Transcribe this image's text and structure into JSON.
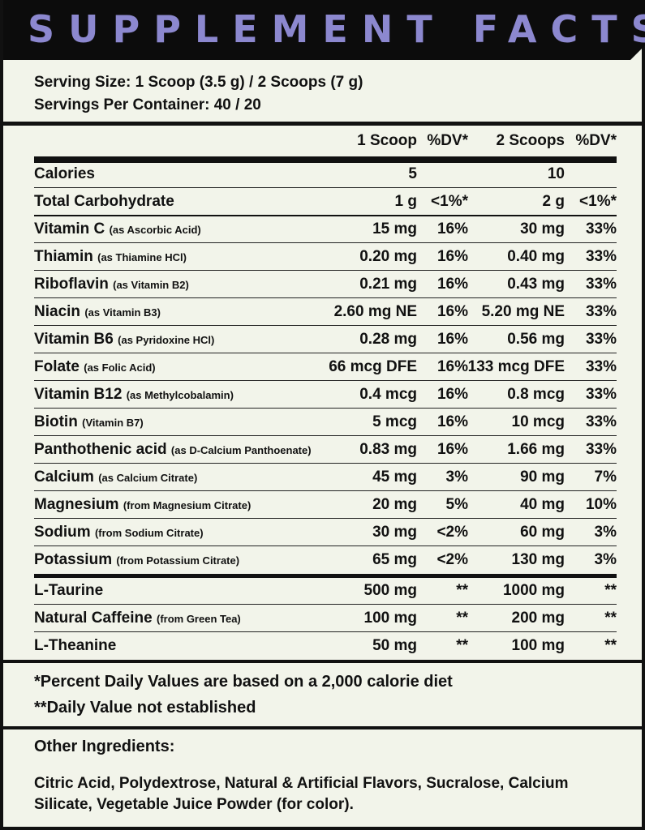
{
  "header": {
    "title": "SUPPLEMENT FACTS",
    "title_color": "#8c88cf",
    "background": "#0c0c0c"
  },
  "serving": {
    "size": "Serving Size: 1 Scoop (3.5 g) / 2 Scoops (7 g)",
    "per_container": "Servings Per Container: 40 / 20"
  },
  "columns": {
    "scoop1": "1 Scoop",
    "dv1": "%DV*",
    "scoop2": "2 Scoops",
    "dv2": "%DV*"
  },
  "nutrients": [
    {
      "name": "Calories",
      "note": "",
      "amt1": "5",
      "dv1": "",
      "amt2": "10",
      "dv2": ""
    },
    {
      "name": "Total Carbohydrate",
      "note": "",
      "amt1": "1 g",
      "dv1": "<1%*",
      "amt2": "2 g",
      "dv2": "<1%*"
    },
    {
      "name": "Vitamin C",
      "note": "(as Ascorbic Acid)",
      "amt1": "15 mg",
      "dv1": "16%",
      "amt2": "30 mg",
      "dv2": "33%"
    },
    {
      "name": "Thiamin",
      "note": "(as Thiamine HCl)",
      "amt1": "0.20 mg",
      "dv1": "16%",
      "amt2": "0.40 mg",
      "dv2": "33%"
    },
    {
      "name": "Riboflavin",
      "note": "(as Vitamin B2)",
      "amt1": "0.21 mg",
      "dv1": "16%",
      "amt2": "0.43 mg",
      "dv2": "33%"
    },
    {
      "name": "Niacin",
      "note": "(as Vitamin B3)",
      "amt1": "2.60 mg NE",
      "dv1": "16%",
      "amt2": "5.20 mg NE",
      "dv2": "33%"
    },
    {
      "name": "Vitamin B6",
      "note": "(as Pyridoxine HCl)",
      "amt1": "0.28 mg",
      "dv1": "16%",
      "amt2": "0.56 mg",
      "dv2": "33%"
    },
    {
      "name": "Folate",
      "note": "(as Folic Acid)",
      "amt1": "66 mcg DFE",
      "dv1": "16%",
      "amt2": "133 mcg DFE",
      "dv2": "33%"
    },
    {
      "name": "Vitamin B12",
      "note": "(as Methylcobalamin)",
      "amt1": "0.4 mcg",
      "dv1": "16%",
      "amt2": "0.8 mcg",
      "dv2": "33%"
    },
    {
      "name": "Biotin",
      "note": "(Vitamin B7)",
      "amt1": "5 mcg",
      "dv1": "16%",
      "amt2": "10 mcg",
      "dv2": "33%"
    },
    {
      "name": "Panthothenic acid",
      "note": "(as D-Calcium Panthoenate)",
      "amt1": "0.83 mg",
      "dv1": "16%",
      "amt2": "1.66 mg",
      "dv2": "33%"
    },
    {
      "name": "Calcium",
      "note": "(as Calcium Citrate)",
      "amt1": "45 mg",
      "dv1": "3%",
      "amt2": "90 mg",
      "dv2": "7%"
    },
    {
      "name": "Magnesium",
      "note": "(from Magnesium Citrate)",
      "amt1": "20 mg",
      "dv1": "5%",
      "amt2": "40 mg",
      "dv2": "10%"
    },
    {
      "name": "Sodium",
      "note": "(from Sodium Citrate)",
      "amt1": "30 mg",
      "dv1": "<2%",
      "amt2": "60 mg",
      "dv2": "3%"
    },
    {
      "name": "Potassium",
      "note": "(from Potassium Citrate)",
      "amt1": "65 mg",
      "dv1": "<2%",
      "amt2": "130 mg",
      "dv2": "3%"
    },
    {
      "name": "L-Taurine",
      "note": "",
      "amt1": "500 mg",
      "dv1": "**",
      "amt2": "1000 mg",
      "dv2": "**"
    },
    {
      "name": "Natural Caffeine",
      "note": "(from Green Tea)",
      "amt1": "100 mg",
      "dv1": "**",
      "amt2": "200 mg",
      "dv2": "**"
    },
    {
      "name": "L-Theanine",
      "note": "",
      "amt1": "50 mg",
      "dv1": "**",
      "amt2": "100 mg",
      "dv2": "**"
    }
  ],
  "footnotes": {
    "dv": "*Percent Daily Values are based on a 2,000 calorie diet",
    "not_established": "**Daily Value not established"
  },
  "other": {
    "title": "Other Ingredients:",
    "text": "Citric Acid, Polydextrose, Natural & Artificial Flavors, Sucralose, Calcium Silicate, Vegetable Juice Powder (for color)."
  }
}
